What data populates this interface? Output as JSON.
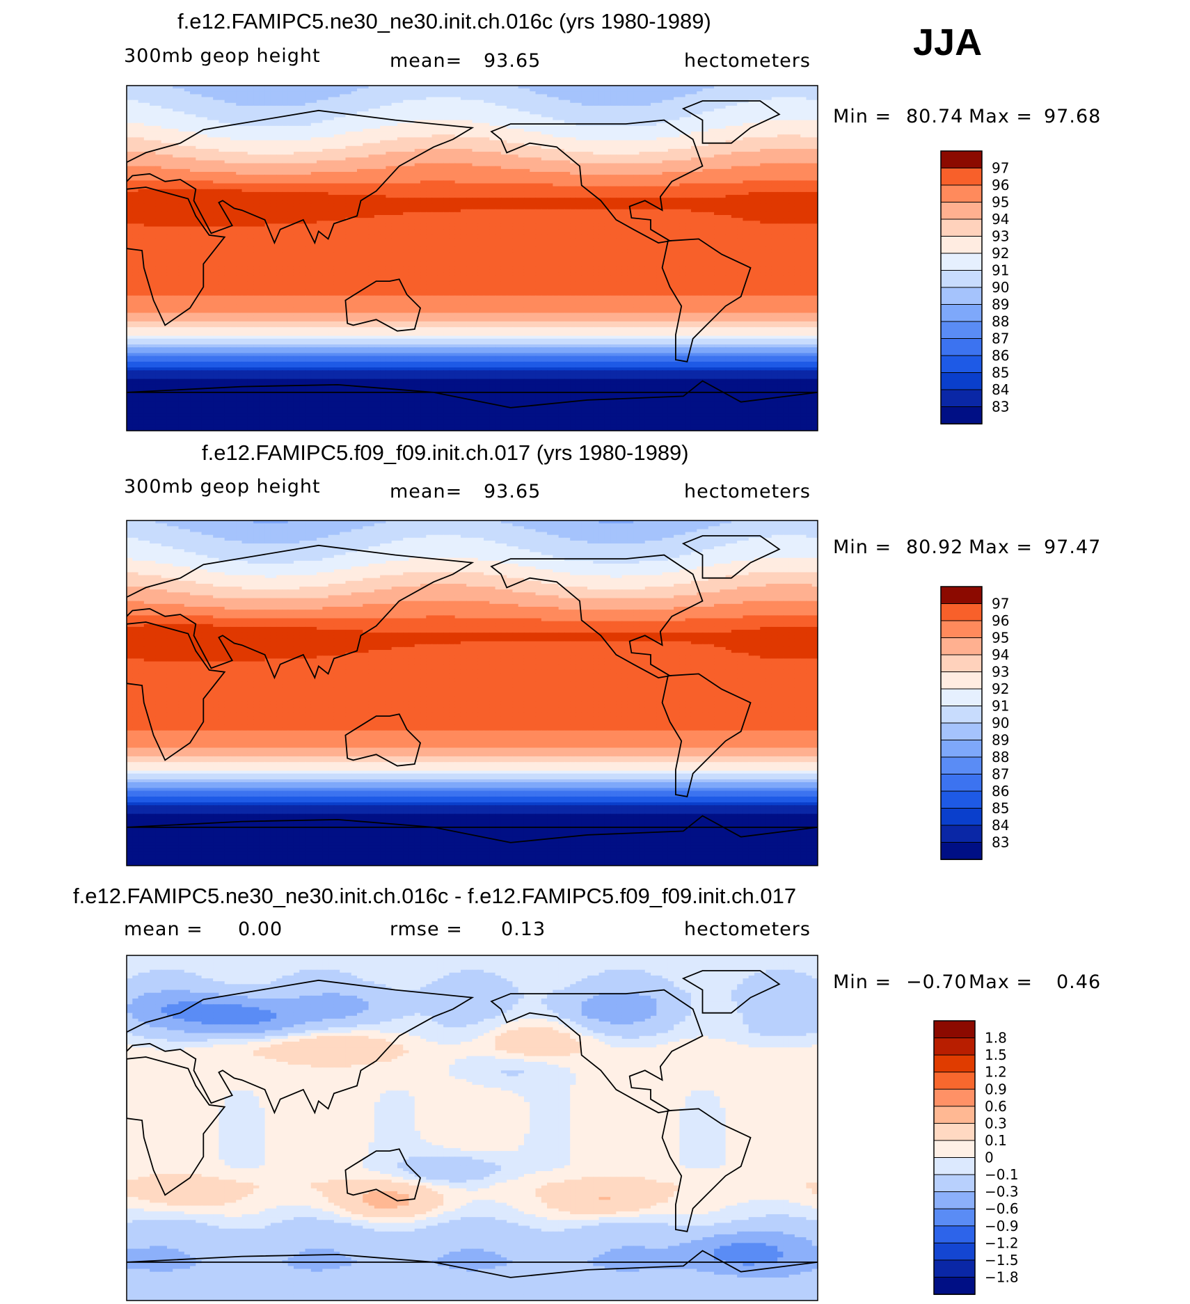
{
  "season": "JJA",
  "colors": {
    "abs_scale": [
      "#000f85",
      "#0a27a6",
      "#0a3fcc",
      "#1e5ae6",
      "#3c73f0",
      "#5a8cf5",
      "#7ea8fa",
      "#a5c3fc",
      "#c8dcfd",
      "#e6f0fe",
      "#ffece1",
      "#ffd2bc",
      "#ffb090",
      "#ff8a5c",
      "#f8602a",
      "#e03800",
      "#b82000",
      "#8c0a00"
    ],
    "diff_scale": [
      "#000f85",
      "#0a27a6",
      "#1446d2",
      "#2d64ea",
      "#5a8cf5",
      "#8cb0fa",
      "#b8d0fd",
      "#dce9fe",
      "#fff0e6",
      "#ffd9c2",
      "#ffb893",
      "#ff9166",
      "#f8682e",
      "#e03c00",
      "#b81e00",
      "#8c0a00"
    ]
  },
  "chart_data": [
    {
      "type": "heatmap",
      "title": "f.e12.FAMIPC5.ne30_ne30.init.ch.016c (yrs 1980-1989)",
      "variable": "300mb geop height",
      "mean_label": "mean=",
      "mean": "93.65",
      "units": "hectometers",
      "min_label": "Min =",
      "min": "80.74",
      "max_label": "Max =",
      "max": "97.68",
      "levels": [
        "97",
        "96",
        "95",
        "94",
        "93",
        "92",
        "91",
        "90",
        "89",
        "88",
        "87",
        "86",
        "85",
        "84",
        "83"
      ],
      "lat_profile": [
        {
          "lat": 90,
          "value": 89.8
        },
        {
          "lat": 80,
          "value": 90.6
        },
        {
          "lat": 70,
          "value": 91.5
        },
        {
          "lat": 60,
          "value": 92.8
        },
        {
          "lat": 50,
          "value": 94.4
        },
        {
          "lat": 40,
          "value": 95.8
        },
        {
          "lat": 30,
          "value": 97.2
        },
        {
          "lat": 20,
          "value": 96.8
        },
        {
          "lat": 0,
          "value": 96.3
        },
        {
          "lat": -20,
          "value": 96.0
        },
        {
          "lat": -30,
          "value": 94.8
        },
        {
          "lat": -40,
          "value": 92.0
        },
        {
          "lat": -50,
          "value": 87.5
        },
        {
          "lat": -60,
          "value": 83.5
        },
        {
          "lat": -70,
          "value": 81.5
        },
        {
          "lat": -90,
          "value": 80.8
        }
      ]
    },
    {
      "type": "heatmap",
      "title": "f.e12.FAMIPC5.f09_f09.init.ch.017 (yrs 1980-1989)",
      "variable": "300mb geop height",
      "mean_label": "mean=",
      "mean": "93.65",
      "units": "hectometers",
      "min_label": "Min =",
      "min": "80.92",
      "max_label": "Max =",
      "max": "97.47",
      "levels": [
        "97",
        "96",
        "95",
        "94",
        "93",
        "92",
        "91",
        "90",
        "89",
        "88",
        "87",
        "86",
        "85",
        "84",
        "83"
      ],
      "lat_profile": [
        {
          "lat": 90,
          "value": 89.6
        },
        {
          "lat": 80,
          "value": 90.5
        },
        {
          "lat": 70,
          "value": 91.4
        },
        {
          "lat": 60,
          "value": 92.8
        },
        {
          "lat": 50,
          "value": 94.3
        },
        {
          "lat": 40,
          "value": 95.8
        },
        {
          "lat": 30,
          "value": 97.1
        },
        {
          "lat": 20,
          "value": 96.8
        },
        {
          "lat": 0,
          "value": 96.3
        },
        {
          "lat": -20,
          "value": 96.0
        },
        {
          "lat": -30,
          "value": 94.8
        },
        {
          "lat": -40,
          "value": 92.0
        },
        {
          "lat": -50,
          "value": 87.5
        },
        {
          "lat": -60,
          "value": 83.5
        },
        {
          "lat": -70,
          "value": 81.6
        },
        {
          "lat": -90,
          "value": 80.9
        }
      ]
    },
    {
      "type": "heatmap",
      "title": "f.e12.FAMIPC5.ne30_ne30.init.ch.016c - f.e12.FAMIPC5.f09_f09.init.ch.017",
      "mean_label": "mean =",
      "mean": "0.00",
      "rmse_label": "rmse =",
      "rmse": "0.13",
      "units": "hectometers",
      "min_label": "Min =",
      "min": "−0.70",
      "max_label": "Max =",
      "max": "0.46",
      "levels": [
        "1.8",
        "1.5",
        "1.2",
        "0.9",
        "0.6",
        "0.3",
        "0.1",
        "0",
        "−0.1",
        "−0.3",
        "−0.6",
        "−0.9",
        "−1.2",
        "−1.5",
        "−1.8"
      ],
      "lat_profile": [
        {
          "lat": 90,
          "value": -0.05
        },
        {
          "lat": 70,
          "value": -0.12
        },
        {
          "lat": 50,
          "value": -0.08
        },
        {
          "lat": 40,
          "value": 0.05
        },
        {
          "lat": 20,
          "value": 0.03
        },
        {
          "lat": 0,
          "value": 0.04
        },
        {
          "lat": -20,
          "value": 0.02
        },
        {
          "lat": -30,
          "value": 0.08
        },
        {
          "lat": -45,
          "value": -0.05
        },
        {
          "lat": -55,
          "value": -0.18
        },
        {
          "lat": -70,
          "value": -0.3
        },
        {
          "lat": -90,
          "value": -0.1
        }
      ],
      "anomalies": [
        {
          "lon": 60,
          "lat": 58,
          "value": -0.7
        },
        {
          "lon": 25,
          "lat": 62,
          "value": -0.4
        },
        {
          "lon": 115,
          "lat": 63,
          "value": -0.25
        },
        {
          "lon": 105,
          "lat": 43,
          "value": 0.3
        },
        {
          "lon": 210,
          "lat": 47,
          "value": 0.25
        },
        {
          "lon": 255,
          "lat": 62,
          "value": -0.35
        },
        {
          "lon": 200,
          "lat": 30,
          "value": -0.15
        },
        {
          "lon": 135,
          "lat": -38,
          "value": 0.35
        },
        {
          "lon": 250,
          "lat": -38,
          "value": 0.3
        },
        {
          "lon": 170,
          "lat": -22,
          "value": -0.3
        },
        {
          "lon": 30,
          "lat": -35,
          "value": 0.2
        },
        {
          "lon": 320,
          "lat": -65,
          "value": -0.5
        }
      ]
    }
  ]
}
